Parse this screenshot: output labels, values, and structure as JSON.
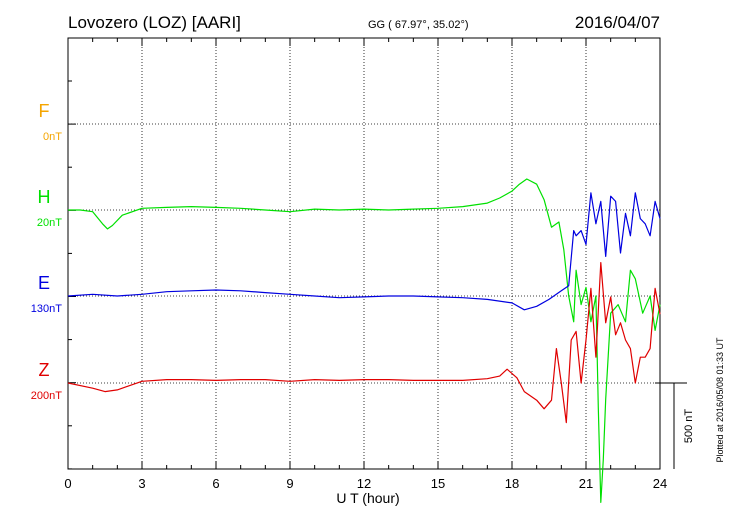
{
  "header": {
    "station": "Lovozero (LOZ)  [AARI]",
    "coords": "GG ( 67.97°,  35.02°)",
    "date": "2016/04/07"
  },
  "footer": {
    "plotted": "Plotted at 2016/05/08 01:33 UT"
  },
  "scale_bar": {
    "label": "500 nT",
    "value_nT": 500
  },
  "chart_data": {
    "type": "line",
    "xlabel": "U T (hour)",
    "xlim": [
      0,
      24
    ],
    "xticks": [
      0,
      3,
      6,
      9,
      12,
      15,
      18,
      21,
      24
    ],
    "grid": true,
    "series": [
      {
        "name": "F",
        "baseline_label": "0nT",
        "color": "#f5a500",
        "x": [],
        "y": []
      },
      {
        "name": "H",
        "baseline_label": "20nT",
        "color": "#00e000",
        "x": [
          0,
          0.5,
          1.0,
          1.4,
          1.6,
          1.8,
          2.2,
          3.0,
          4.0,
          5.0,
          6.0,
          7.0,
          8.0,
          9.0,
          10.0,
          11.0,
          12.0,
          13.0,
          14.0,
          15.0,
          16.0,
          17.0,
          17.5,
          18.0,
          18.3,
          18.6,
          19.0,
          19.3,
          19.6,
          19.9,
          20.1,
          20.3,
          20.5,
          20.6,
          20.8,
          21.0,
          21.2,
          21.4,
          21.5,
          21.6,
          21.7,
          21.8,
          22.0,
          22.3,
          22.6,
          22.8,
          23.0,
          23.3,
          23.6,
          23.8,
          24.0
        ],
        "y": [
          0,
          0,
          -10,
          -80,
          -110,
          -90,
          -30,
          10,
          15,
          20,
          15,
          10,
          0,
          -10,
          5,
          0,
          5,
          0,
          5,
          10,
          20,
          40,
          70,
          110,
          150,
          180,
          150,
          60,
          -100,
          -70,
          -230,
          -500,
          -650,
          -350,
          -550,
          -450,
          -650,
          -500,
          -1150,
          -1700,
          -1450,
          -1100,
          -600,
          -550,
          -650,
          -350,
          -400,
          -600,
          -500,
          -700,
          -550
        ]
      },
      {
        "name": "E",
        "baseline_label": "130nT",
        "color": "#0000e0",
        "x": [
          0,
          1.0,
          2.0,
          3.0,
          4.0,
          5.0,
          6.0,
          7.0,
          8.0,
          9.0,
          10.0,
          11.0,
          12.0,
          13.0,
          14.0,
          15.0,
          16.0,
          17.0,
          18.0,
          18.5,
          19.0,
          19.5,
          20.0,
          20.3,
          20.5,
          20.6,
          20.8,
          21.0,
          21.2,
          21.4,
          21.6,
          21.8,
          22.0,
          22.2,
          22.4,
          22.6,
          22.8,
          23.0,
          23.2,
          23.4,
          23.6,
          23.8,
          24.0
        ],
        "y": [
          0,
          10,
          0,
          10,
          25,
          30,
          35,
          30,
          20,
          10,
          0,
          -10,
          -5,
          0,
          0,
          -5,
          -10,
          -20,
          -40,
          -80,
          -60,
          -20,
          30,
          60,
          380,
          350,
          380,
          300,
          600,
          420,
          550,
          230,
          580,
          550,
          250,
          480,
          350,
          600,
          450,
          420,
          350,
          550,
          450
        ]
      },
      {
        "name": "Z",
        "baseline_label": "200nT",
        "color": "#e00000",
        "x": [
          0,
          1.0,
          1.5,
          2.0,
          3.0,
          4.0,
          5.0,
          6.0,
          7.0,
          8.0,
          9.0,
          10.0,
          11.0,
          12.0,
          13.0,
          14.0,
          15.0,
          16.0,
          17.0,
          17.5,
          17.8,
          18.2,
          18.5,
          19.0,
          19.3,
          19.6,
          19.8,
          20.0,
          20.2,
          20.4,
          20.6,
          20.8,
          21.0,
          21.2,
          21.4,
          21.6,
          21.8,
          22.0,
          22.2,
          22.4,
          22.6,
          22.8,
          23.0,
          23.2,
          23.4,
          23.6,
          23.8,
          24.0
        ],
        "y": [
          0,
          -30,
          -50,
          -40,
          10,
          20,
          20,
          15,
          20,
          20,
          10,
          20,
          15,
          20,
          20,
          15,
          15,
          15,
          25,
          40,
          80,
          30,
          -50,
          -100,
          -150,
          -100,
          200,
          0,
          -230,
          250,
          300,
          0,
          250,
          550,
          150,
          700,
          350,
          500,
          280,
          350,
          250,
          200,
          0,
          150,
          150,
          200,
          550,
          400
        ]
      }
    ]
  }
}
